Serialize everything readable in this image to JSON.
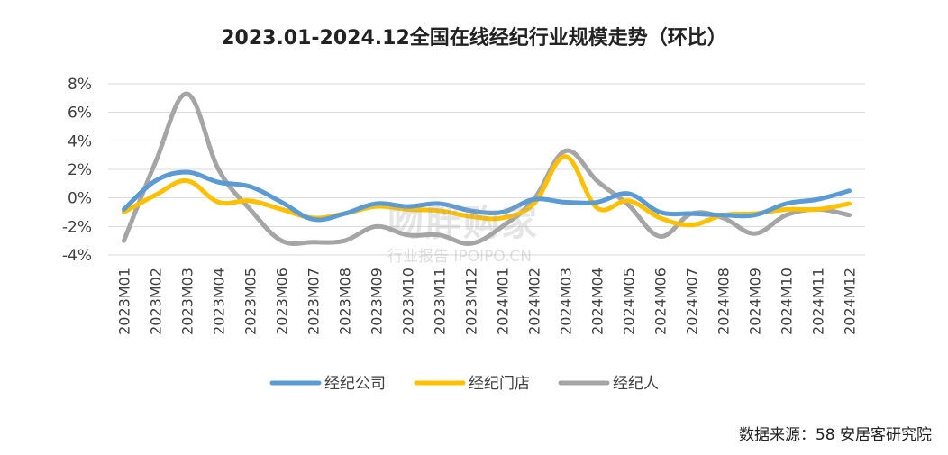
{
  "chart_data": {
    "type": "line",
    "title": "2023.01-2024.12全国在线经纪行业规模走势（环比）",
    "categories": [
      "2023M01",
      "2023M02",
      "2023M03",
      "2023M04",
      "2023M05",
      "2023M06",
      "2023M07",
      "2023M08",
      "2023M09",
      "2023M10",
      "2023M11",
      "2023M12",
      "2024M01",
      "2024M02",
      "2024M03",
      "2024M04",
      "2024M05",
      "2024M06",
      "2024M07",
      "2024M08",
      "2024M09",
      "2024M10",
      "2024M11",
      "2024M12"
    ],
    "ylim": [
      -4,
      8
    ],
    "yticks": [
      "8%",
      "6%",
      "4%",
      "2%",
      "0%",
      "-2%",
      "-4%"
    ],
    "ytick_values": [
      8,
      6,
      4,
      2,
      0,
      -2,
      -4
    ],
    "grid": true,
    "legend_position": "bottom",
    "series": [
      {
        "name": "经纪公司",
        "color": "#5b9bd5",
        "values": [
          -0.8,
          1.2,
          1.8,
          1.1,
          0.8,
          -0.3,
          -1.5,
          -1.1,
          -0.4,
          -0.6,
          -0.4,
          -0.9,
          -1.0,
          -0.1,
          -0.3,
          -0.3,
          0.3,
          -1.0,
          -1.1,
          -1.2,
          -1.2,
          -0.4,
          -0.1,
          0.5
        ]
      },
      {
        "name": "经纪门店",
        "color": "#ffc000",
        "values": [
          -1.0,
          0.2,
          1.2,
          -0.3,
          -0.2,
          -0.8,
          -1.4,
          -1.1,
          -0.6,
          -0.8,
          -0.9,
          -1.3,
          -1.4,
          -0.4,
          2.9,
          -0.7,
          -0.2,
          -1.4,
          -1.9,
          -1.2,
          -1.1,
          -0.8,
          -0.8,
          -0.4
        ]
      },
      {
        "name": "经纪人",
        "color": "#a5a5a5",
        "values": [
          -3.0,
          2.5,
          7.3,
          2.0,
          -0.8,
          -3.0,
          -3.1,
          -3.0,
          -2.0,
          -2.6,
          -2.6,
          -3.2,
          -2.0,
          -0.1,
          3.3,
          1.2,
          -0.5,
          -2.7,
          -1.1,
          -1.4,
          -2.5,
          -1.2,
          -0.8,
          -1.2
        ]
      }
    ]
  },
  "source_note": "数据来源：58 安居客研究院",
  "watermark": {
    "line1": "吻胖购家",
    "line2": "行业报告 IPOIPO.CN"
  }
}
